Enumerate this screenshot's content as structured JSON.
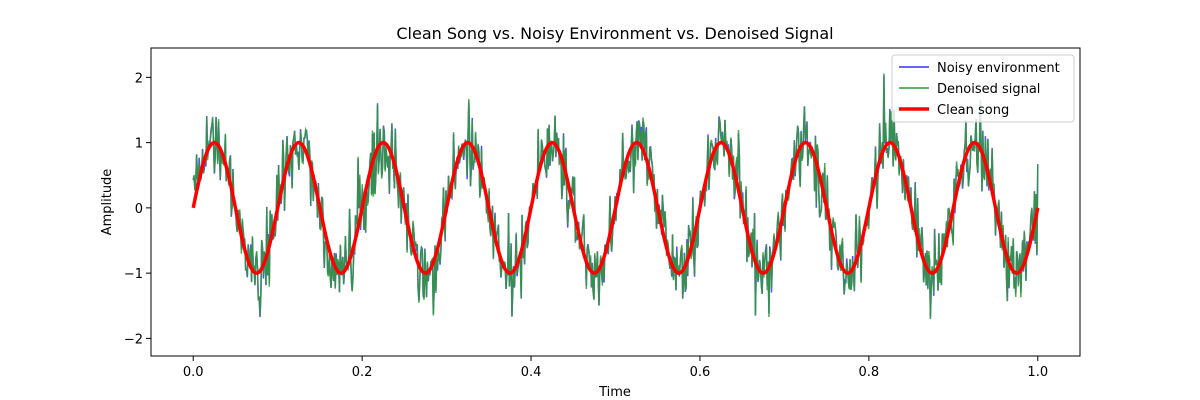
{
  "chart_data": {
    "type": "line",
    "title": "Clean Song vs. Noisy Environment vs. Denoised Signal",
    "xlabel": "Time",
    "ylabel": "Amplitude",
    "xlim": [
      -0.05,
      1.05
    ],
    "ylim": [
      -2.27,
      2.45
    ],
    "xticks": [
      0.0,
      0.2,
      0.4,
      0.6,
      0.8,
      1.0
    ],
    "xtick_labels": [
      "0.0",
      "0.2",
      "0.4",
      "0.6",
      "0.8",
      "1.0"
    ],
    "yticks": [
      -2,
      -1,
      0,
      1,
      2
    ],
    "ytick_labels": [
      "−2",
      "−1",
      "0",
      "1",
      "2"
    ],
    "legend_position": "top-right",
    "series": [
      {
        "name": "Noisy environment",
        "color": "#3333ff",
        "function": "sin(2*pi*10*t) + noise",
        "frequency_hz": 10,
        "noise_std": 0.3,
        "points": 1000
      },
      {
        "name": "Denoised signal",
        "color": "#339933",
        "function": "sin(2*pi*10*t) + noise",
        "frequency_hz": 10,
        "noise_std": 0.3,
        "points": 1000
      },
      {
        "name": "Clean song",
        "color": "#ff0000",
        "function": "sin(2*pi*10*t)",
        "frequency_hz": 10,
        "amplitude": 1,
        "points": 1000
      }
    ]
  }
}
